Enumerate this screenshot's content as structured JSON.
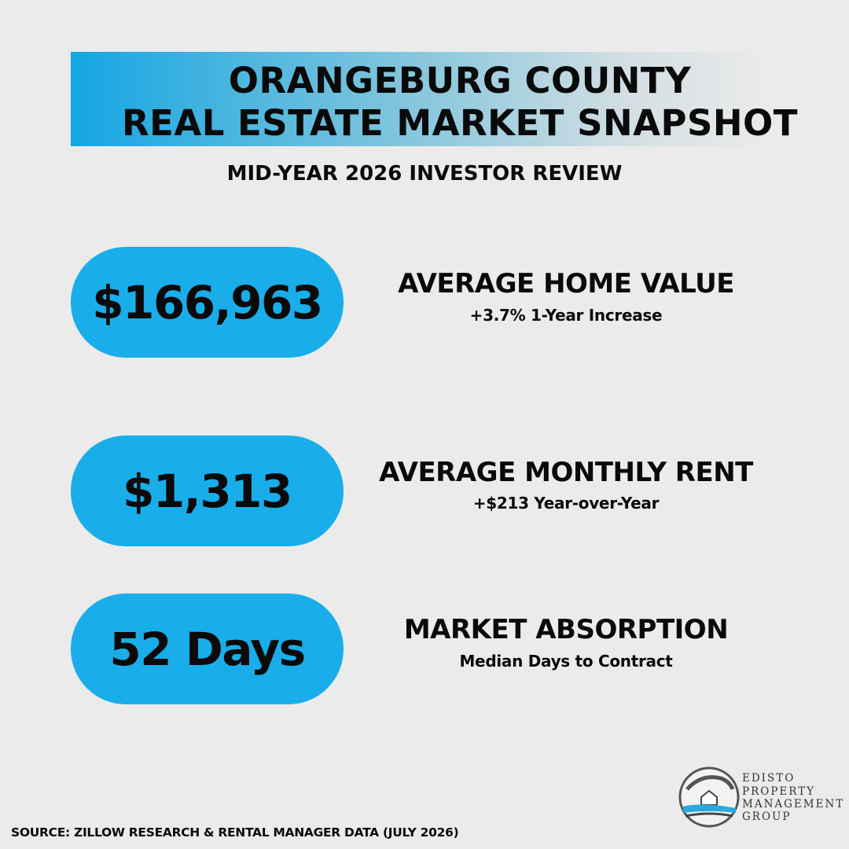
{
  "header": {
    "title_lines": [
      "ORANGEBURG COUNTY",
      "REAL ESTATE MARKET SNAPSHOT"
    ],
    "subtitle": "MID-YEAR 2026 INVESTOR REVIEW"
  },
  "stats": [
    {
      "value": "$166,963",
      "label": "AVERAGE HOME VALUE",
      "detail": "+3.7% 1-Year Increase"
    },
    {
      "value": "$1,313",
      "label": "AVERAGE MONTHLY RENT",
      "detail": "+$213 Year-over-Year"
    },
    {
      "value": "52 Days",
      "label": "MARKET ABSORPTION",
      "detail": "Median Days to Contract"
    }
  ],
  "source": "SOURCE: ZILLOW RESEARCH & RENTAL MANAGER DATA (JULY 2026)",
  "logo": {
    "lines": [
      "EDISTO",
      "PROPERTY",
      "MANAGEMENT",
      "GROUP"
    ]
  }
}
